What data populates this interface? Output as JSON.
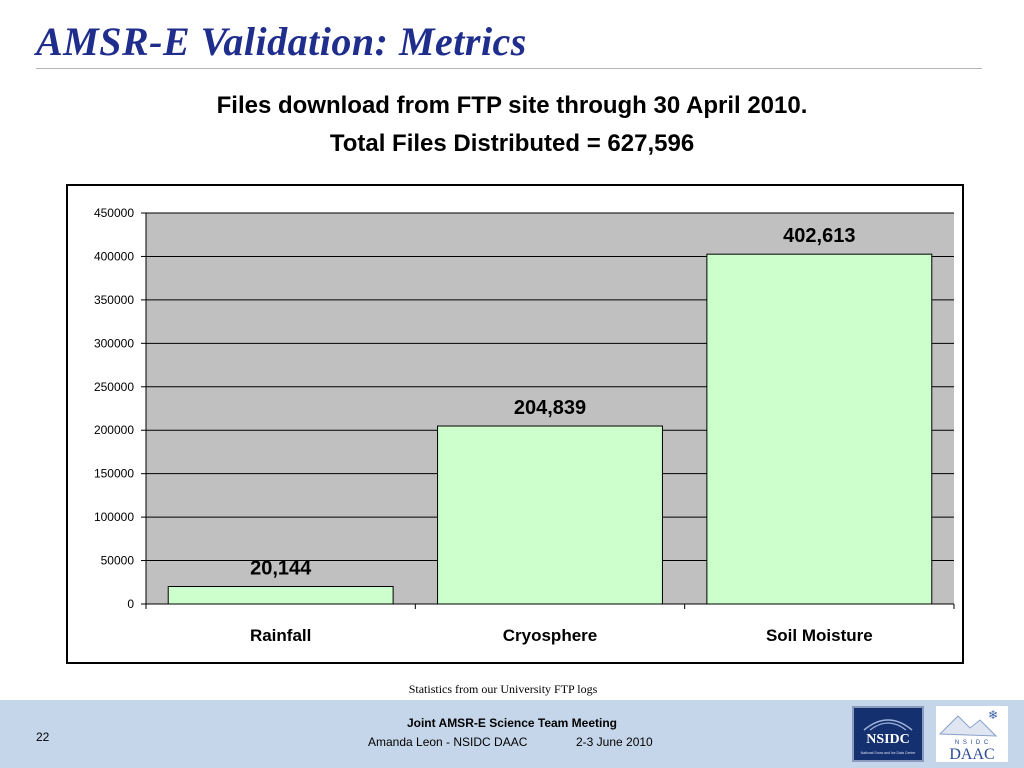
{
  "slide": {
    "title": "AMSR-E Validation: Metrics",
    "headline_line1": "Files download from FTP site through 30 April 2010.",
    "headline_line2": "Total Files Distributed =  627,596",
    "caption": "Statistics from our University FTP logs",
    "page_number": "22",
    "footer_line1": "Joint AMSR-E Science Team Meeting",
    "footer_line2": "Amanda Leon - NSIDC DAAC",
    "footer_date": "2-3 June 2010",
    "logos": {
      "nsidc_text": "NSIDC",
      "nsidc_small": "National Snow and Ice Data Center",
      "daac_small": "N S I D C",
      "daac_text": "DAAC"
    }
  },
  "colors": {
    "title": "#1f2d8c",
    "plot_bg": "#c0c0c0",
    "bar_fill": "#ccffcc",
    "bar_stroke": "#000000",
    "footer_bg": "#c6d6ea"
  },
  "chart_data": {
    "type": "bar",
    "categories": [
      "Rainfall",
      "Cryosphere",
      "Soil Moisture"
    ],
    "values": [
      20144,
      204839,
      402613
    ],
    "data_labels": [
      "20,144",
      "204,839",
      "402,613"
    ],
    "ylim": [
      0,
      450000
    ],
    "yticks": [
      0,
      50000,
      100000,
      150000,
      200000,
      250000,
      300000,
      350000,
      400000,
      450000
    ],
    "grid": true,
    "legend": "none",
    "title": "",
    "xlabel": "",
    "ylabel": ""
  }
}
